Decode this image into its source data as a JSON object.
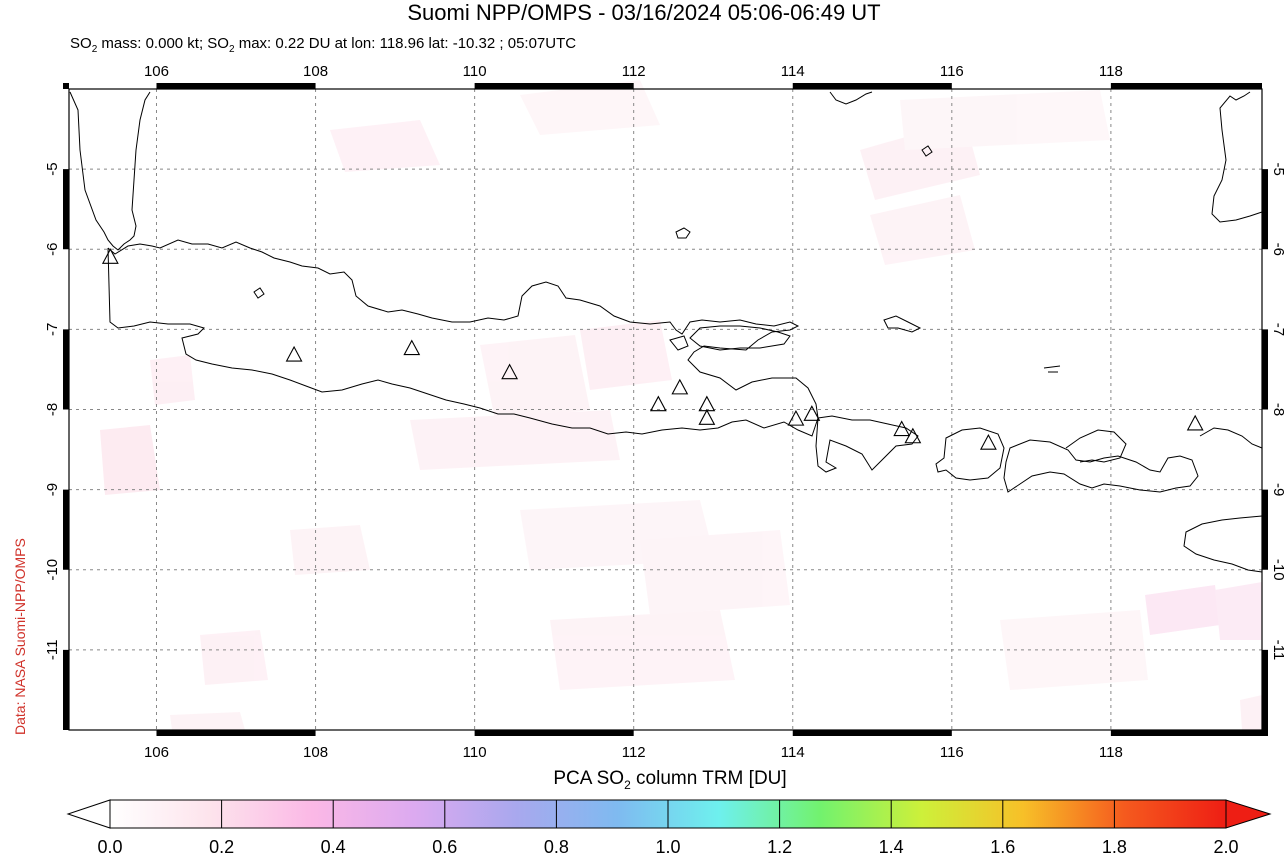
{
  "header": {
    "title": "Suomi NPP/OMPS - 03/16/2024 05:06-06:49 UT",
    "subtitle_prefix": "SO",
    "subtitle_sub": "2",
    "subtitle_mid": " mass: 0.000 kt; SO",
    "subtitle_sub2": "2",
    "subtitle_rest": " max: 0.22 DU at lon: 118.96 lat: -10.32 ; 05:07UTC"
  },
  "credit": "Data: NASA Suomi-NPP/OMPS",
  "map": {
    "lon_range": [
      104.9,
      119.9
    ],
    "lat_range": [
      -12.0,
      -4.0
    ],
    "lon_ticks": [
      "106",
      "108",
      "110",
      "112",
      "114",
      "116",
      "118"
    ],
    "lon_tick_values": [
      106,
      108,
      110,
      112,
      114,
      116,
      118
    ],
    "lat_ticks": [
      "-5",
      "-6",
      "-7",
      "-8",
      "-9",
      "-10",
      "-11"
    ],
    "lat_tick_values": [
      -5,
      -6,
      -7,
      -8,
      -9,
      -10,
      -11
    ],
    "volcano_icon": "triangle-icon",
    "volcanoes": [
      {
        "lon": 105.42,
        "lat": -6.1
      },
      {
        "lon": 107.73,
        "lat": -7.32
      },
      {
        "lon": 109.21,
        "lat": -7.24
      },
      {
        "lon": 110.44,
        "lat": -7.54
      },
      {
        "lon": 112.31,
        "lat": -7.94
      },
      {
        "lon": 112.58,
        "lat": -7.73
      },
      {
        "lon": 112.92,
        "lat": -7.94
      },
      {
        "lon": 112.92,
        "lat": -8.11
      },
      {
        "lon": 114.04,
        "lat": -8.12
      },
      {
        "lon": 114.24,
        "lat": -8.06
      },
      {
        "lon": 115.37,
        "lat": -8.25
      },
      {
        "lon": 115.51,
        "lat": -8.34
      },
      {
        "lon": 116.46,
        "lat": -8.42
      },
      {
        "lon": 119.06,
        "lat": -8.18
      }
    ]
  },
  "colorbar": {
    "title_prefix": "PCA SO",
    "title_sub": "2",
    "title_rest": " column TRM [DU]",
    "ticks": [
      "0.0",
      "0.2",
      "0.4",
      "0.6",
      "0.8",
      "1.0",
      "1.2",
      "1.4",
      "1.6",
      "1.8",
      "2.0"
    ],
    "colors": [
      "#ffffff",
      "#fde3ec",
      "#fbb8e6",
      "#dcaaf0",
      "#a9a8ee",
      "#7fbaf0",
      "#6ef0ee",
      "#72f26e",
      "#cdf03a",
      "#f7c028",
      "#f55a1e",
      "#ee1e14"
    ]
  }
}
